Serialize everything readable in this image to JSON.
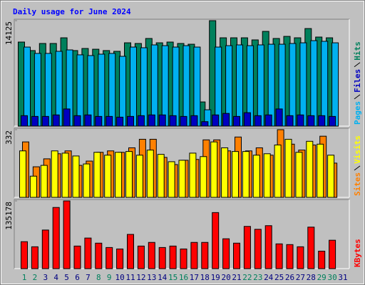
{
  "chart_data": [
    {
      "type": "bar",
      "title": "Daily usage for June 2024",
      "ylim": [
        0,
        14125
      ],
      "yticks": [
        14125
      ],
      "series": [
        {
          "name": "Pages",
          "color": "#00b0f0",
          "values": [
            10590,
            9740,
            9740,
            10020,
            10210,
            9550,
            9450,
            9640,
            9740,
            9350,
            10590,
            10500,
            10880,
            10780,
            10590,
            10780,
            10590,
            2190,
            10590,
            10780,
            10880,
            10780,
            10880,
            10970,
            10970,
            11070,
            11160,
            11450,
            11360,
            11160,
            null
          ]
        },
        {
          "name": "Files",
          "color": "#0000c0",
          "values": [
            1400,
            1300,
            1300,
            1500,
            2300,
            1400,
            1500,
            1300,
            1300,
            1200,
            1300,
            1400,
            1500,
            1500,
            1400,
            1300,
            1400,
            600,
            1500,
            1700,
            1300,
            1800,
            1400,
            1500,
            2300,
            1400,
            1500,
            1400,
            1400,
            1300,
            null
          ]
        },
        {
          "name": "Hits",
          "color": "#00805c",
          "values": [
            11260,
            10120,
            11070,
            11070,
            11830,
            10120,
            10400,
            10300,
            10120,
            10020,
            11160,
            11070,
            11740,
            11160,
            11260,
            11070,
            10970,
            3240,
            14125,
            11830,
            11830,
            11830,
            11550,
            12690,
            11740,
            12020,
            11830,
            13070,
            11930,
            11830,
            null
          ]
        }
      ]
    },
    {
      "type": "bar",
      "ylim": [
        0,
        332
      ],
      "yticks": [
        332
      ],
      "series": [
        {
          "name": "Sites",
          "color": "#ff8000",
          "values": [
            272,
            150,
            189,
            214,
            228,
            157,
            178,
            221,
            228,
            221,
            243,
            285,
            285,
            196,
            161,
            182,
            186,
            282,
            282,
            228,
            296,
            228,
            243,
            207,
            332,
            261,
            232,
            257,
            300,
            168,
            null
          ]
        },
        {
          "name": "Visits",
          "color": "#ffff00",
          "values": [
            228,
            104,
            157,
            228,
            217,
            203,
            164,
            221,
            207,
            221,
            225,
            207,
            232,
            211,
            175,
            182,
            217,
            200,
            272,
            243,
            225,
            225,
            207,
            214,
            257,
            285,
            221,
            275,
            261,
            207,
            null
          ]
        }
      ]
    },
    {
      "type": "bar",
      "ylim": [
        0,
        135178
      ],
      "yticks": [
        135178
      ],
      "categories": [
        "1",
        "2",
        "3",
        "4",
        "5",
        "6",
        "7",
        "8",
        "9",
        "10",
        "11",
        "12",
        "13",
        "14",
        "15",
        "16",
        "17",
        "18",
        "19",
        "20",
        "21",
        "22",
        "23",
        "24",
        "25",
        "26",
        "27",
        "28",
        "29",
        "30",
        "31"
      ],
      "category_colors": [
        "#00805c",
        "#00805c",
        "#000080",
        "#000080",
        "#000080",
        "#000080",
        "#000080",
        "#00805c",
        "#00805c",
        "#000080",
        "#000080",
        "#000080",
        "#000080",
        "#000080",
        "#00805c",
        "#00805c",
        "#000080",
        "#000080",
        "#000080",
        "#000080",
        "#000080",
        "#00805c",
        "#00805c",
        "#000080",
        "#000080",
        "#000080",
        "#000080",
        "#000080",
        "#00805c",
        "#00805c",
        "#000080"
      ],
      "series": [
        {
          "name": "KBytes",
          "color": "#ff0000",
          "values": [
            53780,
            43610,
            77040,
            122100,
            135178,
            45060,
            61050,
            50870,
            42150,
            39240,
            68310,
            45060,
            52330,
            42150,
            45060,
            39240,
            52330,
            52330,
            111920,
            59590,
            50870,
            84300,
            78490,
            85760,
            49420,
            47970,
            43610,
            82850,
            34880,
            56690,
            null
          ]
        }
      ]
    }
  ]
}
